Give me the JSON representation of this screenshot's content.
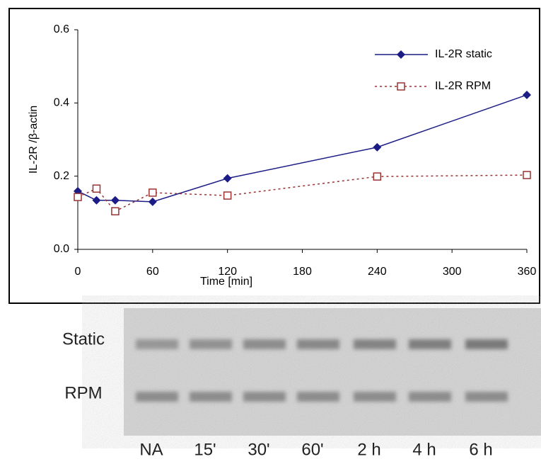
{
  "chart_data": {
    "type": "line",
    "x_label": "Time [min]",
    "y_label": "IL-2R /β-actin",
    "x": [
      0,
      15,
      30,
      60,
      120,
      240,
      360
    ],
    "series": [
      {
        "name": "IL-2R static",
        "color": "#1c1c86",
        "marker": "diamond",
        "dashed": false,
        "values": [
          0.159,
          0.134,
          0.134,
          0.13,
          0.194,
          0.279,
          0.422
        ]
      },
      {
        "name": "IL-2R RPM",
        "color": "#993333",
        "marker": "square",
        "dashed": true,
        "values": [
          0.143,
          0.166,
          0.104,
          0.155,
          0.147,
          0.199,
          0.203
        ]
      }
    ],
    "xlim": [
      0,
      360
    ],
    "xticks": [
      0,
      60,
      120,
      180,
      240,
      300,
      360
    ],
    "ylim": [
      0,
      0.6
    ],
    "yticks": [
      {
        "value": 0,
        "label": "0.0"
      },
      0.2,
      0.4,
      0.6
    ],
    "legend": "top-right",
    "grid": false
  },
  "gel": {
    "rows": [
      "Static",
      "RPM"
    ],
    "lanes": [
      "NA",
      "15'",
      "30'",
      "60'",
      "2 h",
      "4 h",
      "6 h"
    ]
  }
}
